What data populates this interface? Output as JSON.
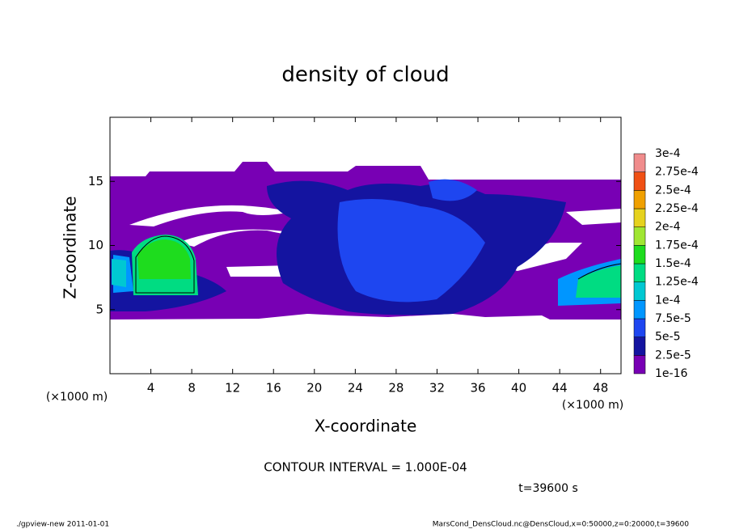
{
  "chart_data": {
    "type": "heatmap",
    "title": "density of cloud",
    "x_label": "X-coordinate",
    "y_label": "Z-coordinate",
    "unit_label": "(×1000 m)",
    "xlim": [
      0,
      50
    ],
    "xticks": [
      4,
      8,
      12,
      16,
      20,
      24,
      28,
      32,
      36,
      40,
      44,
      48
    ],
    "ylim": [
      0,
      20
    ],
    "yticks": [
      5,
      10,
      15
    ],
    "colorbar": {
      "levels": [
        {
          "value": 1e-16,
          "label": "1e-16"
        },
        {
          "value": 2.5e-05,
          "label": "2.5e-5"
        },
        {
          "value": 5e-05,
          "label": "5e-5"
        },
        {
          "value": 7.5e-05,
          "label": "7.5e-5"
        },
        {
          "value": 0.0001,
          "label": "1e-4"
        },
        {
          "value": 0.000125,
          "label": "1.25e-4"
        },
        {
          "value": 0.00015,
          "label": "1.5e-4"
        },
        {
          "value": 0.000175,
          "label": "1.75e-4"
        },
        {
          "value": 0.0002,
          "label": "2e-4"
        },
        {
          "value": 0.000225,
          "label": "2.25e-4"
        },
        {
          "value": 0.00025,
          "label": "2.5e-4"
        },
        {
          "value": 0.000275,
          "label": "2.75e-4"
        },
        {
          "value": 0.0003,
          "label": "3e-4"
        }
      ],
      "colors": [
        "#7800b4",
        "#1414a0",
        "#1e46f0",
        "#0096ff",
        "#00c8d2",
        "#00dc82",
        "#1edc1e",
        "#a0e632",
        "#e6d21e",
        "#f0a000",
        "#f05014",
        "#f08c8c"
      ]
    },
    "contour_interval": "CONTOUR INTERVAL = 1.000E-04",
    "time": "t=39600 s",
    "footer_left": "./gpview-new   2011-01-01",
    "footer_right": "MarsCond_DensCloud.nc@DensCloud,x=0:50000,z=0:20000,t=39600"
  }
}
